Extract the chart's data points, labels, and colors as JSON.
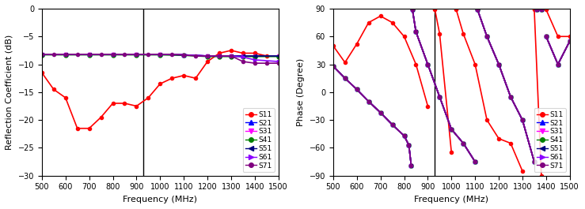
{
  "left": {
    "xlabel": "Frequency (MHz)",
    "ylabel": "Reflection Coefficient (dB)",
    "xlim": [
      500,
      1500
    ],
    "ylim": [
      -30,
      0
    ],
    "xticks": [
      500,
      600,
      700,
      800,
      900,
      1000,
      1100,
      1200,
      1300,
      1400,
      1500
    ],
    "yticks": [
      0,
      -5,
      -10,
      -15,
      -20,
      -25,
      -30
    ],
    "vline": 930,
    "series": {
      "S11": {
        "color": "#FF0000",
        "marker": "o",
        "ms": 3,
        "lw": 1.2,
        "freq": [
          500,
          550,
          600,
          650,
          700,
          750,
          800,
          850,
          900,
          950,
          1000,
          1050,
          1100,
          1150,
          1200,
          1250,
          1300,
          1350,
          1400,
          1450,
          1500
        ],
        "vals": [
          -11.5,
          -14.5,
          -16,
          -21.5,
          -21.5,
          -19.5,
          -17,
          -17,
          -17.5,
          -16,
          -13.5,
          -12.5,
          -12,
          -12.5,
          -9.5,
          -8,
          -7.5,
          -8,
          -8,
          -8.5,
          -8.5
        ]
      },
      "S21": {
        "color": "#0000FF",
        "marker": "^",
        "ms": 3,
        "lw": 1.2,
        "freq": [
          500,
          600,
          700,
          800,
          900,
          1000,
          1100,
          1200,
          1250,
          1300,
          1350,
          1400,
          1500
        ],
        "vals": [
          -8.2,
          -8.2,
          -8.2,
          -8.2,
          -8.2,
          -8.2,
          -8.3,
          -8.5,
          -8.5,
          -8.5,
          -8.5,
          -8.5,
          -8.5
        ]
      },
      "S31": {
        "color": "#FF00FF",
        "marker": "v",
        "ms": 3,
        "lw": 1.2,
        "freq": [
          500,
          600,
          700,
          800,
          900,
          1000,
          1100,
          1200,
          1250,
          1300,
          1350,
          1400,
          1500
        ],
        "vals": [
          -8.2,
          -8.2,
          -8.2,
          -8.2,
          -8.2,
          -8.2,
          -8.3,
          -8.5,
          -8.5,
          -8.5,
          -8.5,
          -8.5,
          -8.5
        ]
      },
      "S41": {
        "color": "#008000",
        "marker": "o",
        "ms": 3.5,
        "lw": 1.2,
        "freq": [
          500,
          600,
          700,
          800,
          900,
          1000,
          1100,
          1200,
          1250,
          1300,
          1350,
          1400,
          1500
        ],
        "vals": [
          -8.3,
          -8.3,
          -8.3,
          -8.3,
          -8.3,
          -8.3,
          -8.4,
          -8.6,
          -8.6,
          -8.6,
          -8.6,
          -8.6,
          -8.6
        ]
      },
      "S51": {
        "color": "#000080",
        "marker": "<",
        "ms": 3,
        "lw": 1.2,
        "freq": [
          500,
          600,
          700,
          800,
          900,
          1000,
          1100,
          1200,
          1250,
          1300,
          1350,
          1400,
          1500
        ],
        "vals": [
          -8.2,
          -8.2,
          -8.2,
          -8.2,
          -8.2,
          -8.2,
          -8.3,
          -8.5,
          -8.5,
          -8.5,
          -8.5,
          -8.5,
          -8.5
        ]
      },
      "S61": {
        "color": "#8B00FF",
        "marker": ">",
        "ms": 3,
        "lw": 1.2,
        "freq": [
          500,
          600,
          700,
          800,
          900,
          1000,
          1100,
          1200,
          1250,
          1300,
          1350,
          1400,
          1500
        ],
        "vals": [
          -8.2,
          -8.2,
          -8.2,
          -8.2,
          -8.2,
          -8.2,
          -8.3,
          -8.5,
          -8.5,
          -8.5,
          -8.7,
          -9.2,
          -9.5
        ]
      },
      "S71": {
        "color": "#800080",
        "marker": "o",
        "ms": 3,
        "lw": 1.2,
        "freq": [
          500,
          550,
          600,
          650,
          700,
          750,
          800,
          850,
          900,
          950,
          1000,
          1050,
          1100,
          1150,
          1200,
          1250,
          1300,
          1350,
          1400,
          1450,
          1500
        ],
        "vals": [
          -8.2,
          -8.2,
          -8.2,
          -8.2,
          -8.2,
          -8.2,
          -8.2,
          -8.2,
          -8.2,
          -8.2,
          -8.2,
          -8.2,
          -8.3,
          -8.5,
          -8.5,
          -8.5,
          -8.5,
          -9.5,
          -9.8,
          -9.8,
          -9.8
        ]
      }
    }
  },
  "right": {
    "xlabel": "Frequency (MHz)",
    "ylabel": "Phase (Degree)",
    "xlim": [
      500,
      1500
    ],
    "ylim": [
      -90,
      90
    ],
    "xticks": [
      500,
      600,
      700,
      800,
      900,
      1000,
      1100,
      1200,
      1300,
      1400,
      1500
    ],
    "yticks": [
      -90,
      -60,
      -30,
      0,
      30,
      60,
      90
    ],
    "vline": 930,
    "s11_segments": [
      [
        500,
        50
      ],
      [
        550,
        32
      ],
      [
        600,
        52
      ],
      [
        650,
        75
      ],
      [
        700,
        82
      ],
      [
        750,
        75
      ],
      [
        800,
        60
      ],
      [
        850,
        30
      ],
      [
        900,
        -15
      ],
      [
        null,
        null
      ],
      [
        930,
        89
      ],
      [
        950,
        63
      ],
      [
        1000,
        -65
      ],
      [
        null,
        null
      ],
      [
        1020,
        89
      ],
      [
        1050,
        63
      ],
      [
        1100,
        30
      ],
      [
        1150,
        -30
      ],
      [
        1200,
        -50
      ],
      [
        1250,
        -55
      ],
      [
        1300,
        -85
      ],
      [
        null,
        null
      ],
      [
        1350,
        89
      ],
      [
        1380,
        -90
      ],
      [
        null,
        null
      ],
      [
        1400,
        89
      ],
      [
        1450,
        60
      ],
      [
        1500,
        60
      ]
    ],
    "purple_segments": [
      [
        500,
        28
      ],
      [
        550,
        15
      ],
      [
        600,
        3
      ],
      [
        650,
        -10
      ],
      [
        700,
        -22
      ],
      [
        750,
        -35
      ],
      [
        800,
        -47
      ],
      [
        820,
        -57
      ],
      [
        830,
        -79
      ],
      [
        null,
        null
      ],
      [
        835,
        89
      ],
      [
        850,
        65
      ],
      [
        900,
        30
      ],
      [
        950,
        -5
      ],
      [
        1000,
        -40
      ],
      [
        1050,
        -55
      ],
      [
        1100,
        -75
      ],
      [
        null,
        null
      ],
      [
        1110,
        89
      ],
      [
        1150,
        60
      ],
      [
        1200,
        30
      ],
      [
        1250,
        -5
      ],
      [
        1300,
        -30
      ],
      [
        1350,
        -75
      ],
      [
        null,
        null
      ],
      [
        1360,
        89
      ],
      [
        1380,
        89
      ],
      [
        null,
        null
      ],
      [
        1400,
        60
      ],
      [
        1450,
        30
      ],
      [
        1500,
        55
      ]
    ],
    "s61_segments": [
      [
        500,
        28
      ],
      [
        550,
        15
      ],
      [
        600,
        3
      ],
      [
        650,
        -10
      ],
      [
        700,
        -22
      ],
      [
        750,
        -35
      ],
      [
        800,
        -47
      ],
      [
        820,
        -57
      ],
      [
        830,
        -79
      ],
      [
        null,
        null
      ],
      [
        835,
        89
      ],
      [
        850,
        65
      ],
      [
        900,
        30
      ],
      [
        950,
        -5
      ],
      [
        1000,
        -40
      ],
      [
        1050,
        -55
      ],
      [
        1100,
        -75
      ],
      [
        null,
        null
      ],
      [
        1110,
        89
      ],
      [
        1150,
        60
      ],
      [
        1200,
        30
      ],
      [
        1250,
        -5
      ],
      [
        1300,
        -30
      ],
      [
        1350,
        -75
      ],
      [
        null,
        null
      ],
      [
        1360,
        89
      ],
      [
        1380,
        89
      ],
      [
        null,
        null
      ],
      [
        1400,
        60
      ],
      [
        1450,
        30
      ],
      [
        1500,
        55
      ]
    ]
  },
  "legend_order": [
    "S11",
    "S21",
    "S31",
    "S41",
    "S51",
    "S61",
    "S71"
  ],
  "legend_colors": {
    "S11": "#FF0000",
    "S21": "#0000FF",
    "S31": "#FF00FF",
    "S41": "#008000",
    "S51": "#000080",
    "S61": "#8B00FF",
    "S71": "#800080"
  },
  "legend_markers": {
    "S11": "o",
    "S21": "^",
    "S31": "v",
    "S41": "o",
    "S51": "<",
    "S61": ">",
    "S71": "o"
  }
}
